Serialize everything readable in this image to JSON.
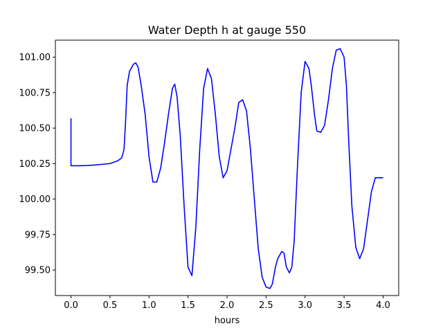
{
  "chart_data": {
    "type": "line",
    "title": "Water Depth h at gauge 550",
    "xlabel": "hours",
    "ylabel": "",
    "xlim": [
      -0.2,
      4.2
    ],
    "ylim": [
      99.32,
      101.12
    ],
    "grid": false,
    "xticks": [
      0.0,
      0.5,
      1.0,
      1.5,
      2.0,
      2.5,
      3.0,
      3.5,
      4.0
    ],
    "xtick_labels": [
      "0.0",
      "0.5",
      "1.0",
      "1.5",
      "2.0",
      "2.5",
      "3.0",
      "3.5",
      "4.0"
    ],
    "yticks": [
      99.5,
      99.75,
      100.0,
      100.25,
      100.5,
      100.75,
      101.0
    ],
    "ytick_labels": [
      "99.50",
      "99.75",
      "100.00",
      "100.25",
      "100.50",
      "100.75",
      "101.00"
    ],
    "series": [
      {
        "color": "#0000ff",
        "x": [
          0.0,
          0.0,
          0.1,
          0.2,
          0.3,
          0.4,
          0.5,
          0.55,
          0.6,
          0.65,
          0.68,
          0.7,
          0.72,
          0.75,
          0.8,
          0.83,
          0.86,
          0.9,
          0.95,
          1.0,
          1.05,
          1.1,
          1.15,
          1.2,
          1.25,
          1.3,
          1.33,
          1.36,
          1.4,
          1.45,
          1.5,
          1.55,
          1.6,
          1.65,
          1.7,
          1.75,
          1.8,
          1.85,
          1.9,
          1.95,
          2.0,
          2.05,
          2.1,
          2.15,
          2.2,
          2.25,
          2.3,
          2.35,
          2.4,
          2.45,
          2.5,
          2.55,
          2.58,
          2.62,
          2.65,
          2.7,
          2.73,
          2.76,
          2.8,
          2.83,
          2.86,
          2.9,
          2.95,
          3.0,
          3.05,
          3.08,
          3.12,
          3.15,
          3.2,
          3.25,
          3.3,
          3.35,
          3.4,
          3.45,
          3.5,
          3.53,
          3.56,
          3.6,
          3.65,
          3.7,
          3.75,
          3.8,
          3.85,
          3.9,
          3.95,
          4.0
        ],
        "y": [
          100.57,
          100.235,
          100.235,
          100.236,
          100.24,
          100.245,
          100.25,
          100.26,
          100.27,
          100.29,
          100.35,
          100.55,
          100.8,
          100.9,
          100.95,
          100.96,
          100.93,
          100.8,
          100.6,
          100.3,
          100.12,
          100.12,
          100.22,
          100.4,
          100.6,
          100.78,
          100.81,
          100.72,
          100.45,
          99.95,
          99.52,
          99.46,
          99.8,
          100.35,
          100.78,
          100.92,
          100.85,
          100.6,
          100.3,
          100.15,
          100.2,
          100.35,
          100.5,
          100.68,
          100.7,
          100.62,
          100.35,
          100.0,
          99.65,
          99.45,
          99.38,
          99.37,
          99.4,
          99.52,
          99.58,
          99.63,
          99.62,
          99.52,
          99.48,
          99.52,
          99.7,
          100.2,
          100.75,
          100.97,
          100.92,
          100.8,
          100.6,
          100.48,
          100.47,
          100.52,
          100.7,
          100.92,
          101.05,
          101.06,
          101.0,
          100.8,
          100.4,
          99.95,
          99.66,
          99.58,
          99.65,
          99.85,
          100.05,
          100.15,
          100.15,
          100.15
        ]
      }
    ]
  }
}
